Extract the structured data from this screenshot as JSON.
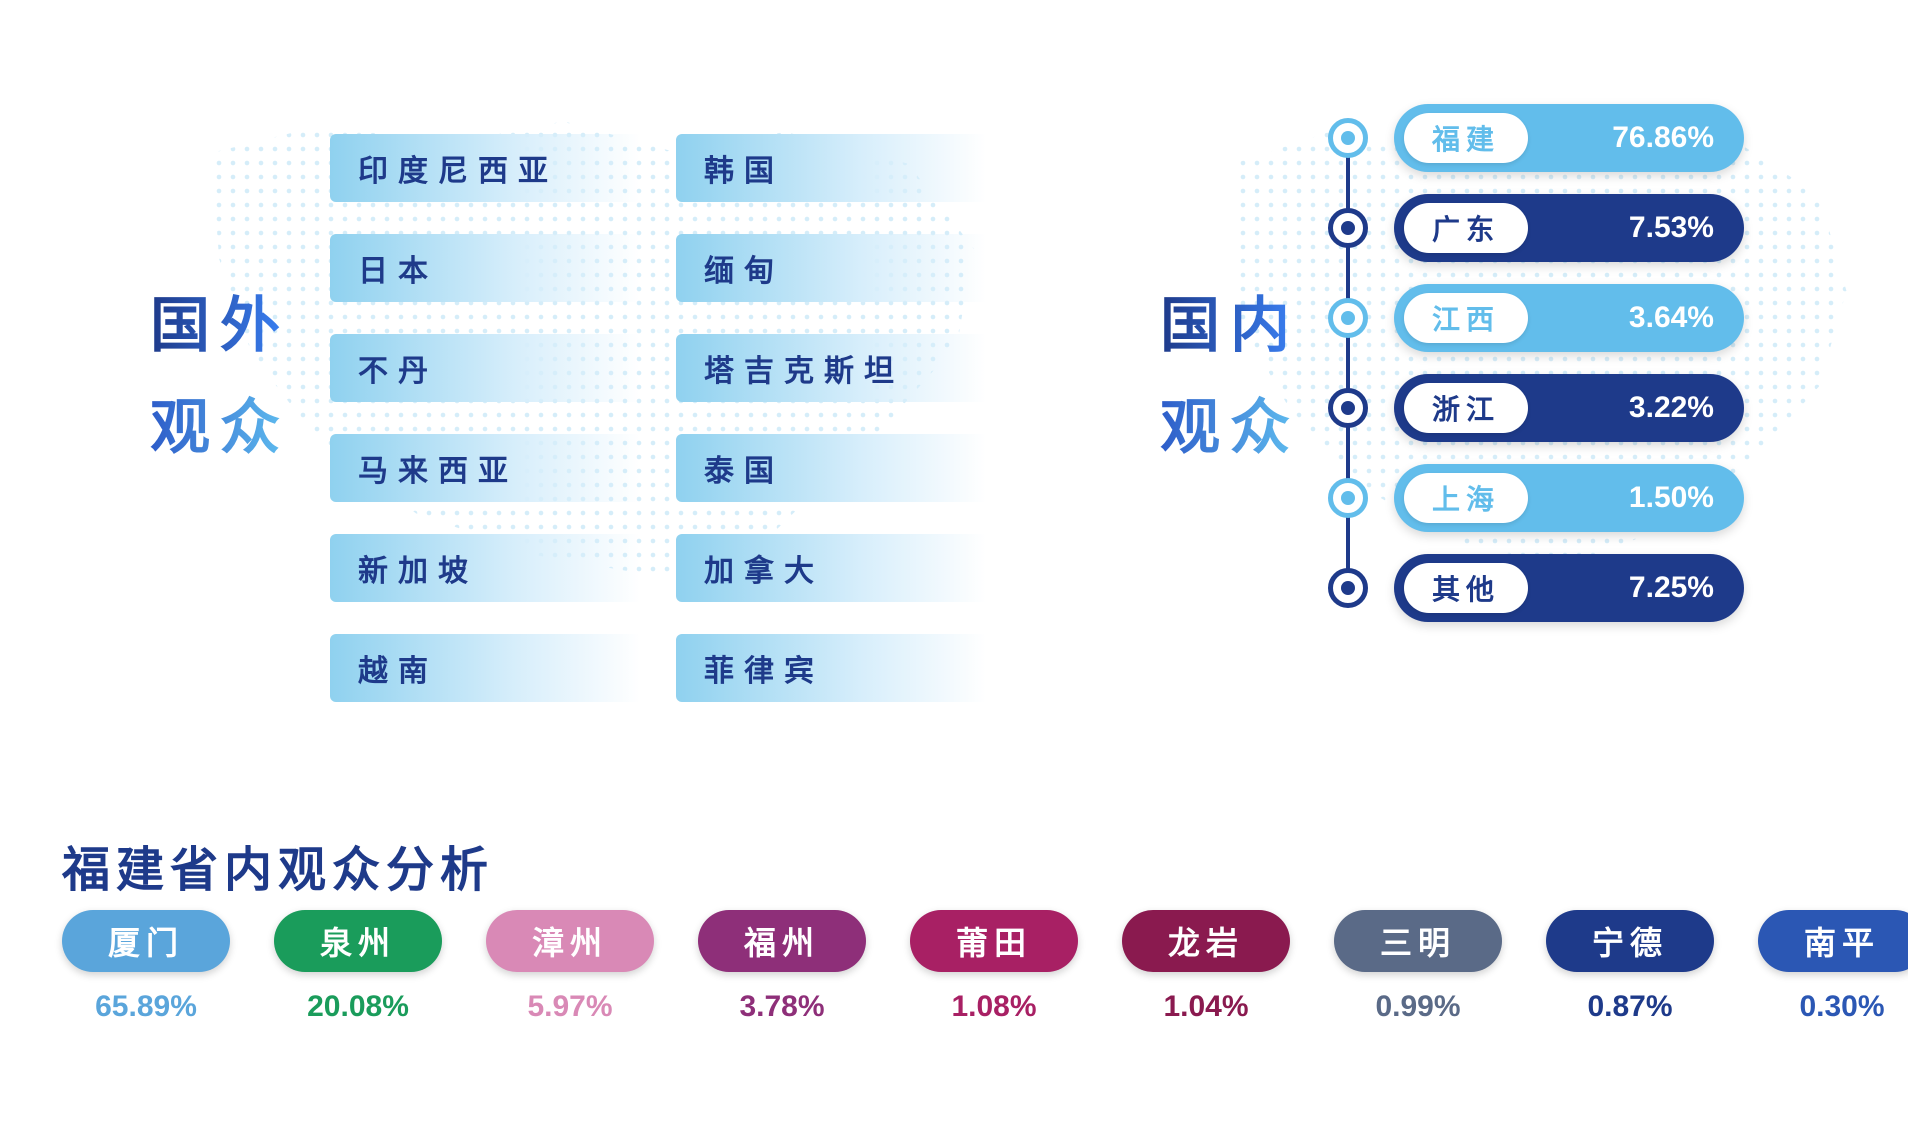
{
  "background_color": "#ffffff",
  "map_dot_color": "#bfe3f5",
  "foreign": {
    "title_line1": "国外",
    "title_line2": "观众",
    "title_gradient_from": "#1e3a8a",
    "title_gradient_to": "#60bff0",
    "bar_font_color": "#1e3a8a",
    "bar_fontsize": 30,
    "col1": [
      {
        "label": "印度尼西亚",
        "c1": "#8fd1ef",
        "c2": "#d7eefb"
      },
      {
        "label": "日本",
        "c1": "#8fd1ef",
        "c2": "#d7eefb"
      },
      {
        "label": "不丹",
        "c1": "#8fd1ef",
        "c2": "#d7eefb"
      },
      {
        "label": "马来西亚",
        "c1": "#8fd1ef",
        "c2": "#d7eefb"
      },
      {
        "label": "新加坡",
        "c1": "#8fd1ef",
        "c2": "#d7eefb"
      },
      {
        "label": "越南",
        "c1": "#8fd1ef",
        "c2": "#d7eefb"
      }
    ],
    "col2": [
      {
        "label": "韩国",
        "c1": "#8fd1ef",
        "c2": "#d7eefb"
      },
      {
        "label": "缅甸",
        "c1": "#8fd1ef",
        "c2": "#d7eefb"
      },
      {
        "label": "塔吉克斯坦",
        "c1": "#8fd1ef",
        "c2": "#d7eefb"
      },
      {
        "label": "泰国",
        "c1": "#8fd1ef",
        "c2": "#d7eefb"
      },
      {
        "label": "加拿大",
        "c1": "#8fd1ef",
        "c2": "#d7eefb"
      },
      {
        "label": "菲律宾",
        "c1": "#8fd1ef",
        "c2": "#d7eefb"
      }
    ]
  },
  "domestic": {
    "title_line1": "国内",
    "title_line2": "观众",
    "timeline_color": "#1e3a8a",
    "items": [
      {
        "label": "福建",
        "value": "76.86%",
        "pill_color": "#62bdeb",
        "node_color": "#62bdeb",
        "label_text_color": "#62bdeb"
      },
      {
        "label": "广东",
        "value": "7.53%",
        "pill_color": "#1e3a8a",
        "node_color": "#1e3a8a",
        "label_text_color": "#1e3a8a"
      },
      {
        "label": "江西",
        "value": "3.64%",
        "pill_color": "#62bdeb",
        "node_color": "#62bdeb",
        "label_text_color": "#62bdeb"
      },
      {
        "label": "浙江",
        "value": "3.22%",
        "pill_color": "#1e3a8a",
        "node_color": "#1e3a8a",
        "label_text_color": "#1e3a8a"
      },
      {
        "label": "上海",
        "value": "1.50%",
        "pill_color": "#62bdeb",
        "node_color": "#62bdeb",
        "label_text_color": "#62bdeb"
      },
      {
        "label": "其他",
        "value": "7.25%",
        "pill_color": "#1e3a8a",
        "node_color": "#1e3a8a",
        "label_text_color": "#1e3a8a"
      }
    ]
  },
  "fujian": {
    "title": "福建省内观众分析",
    "title_color": "#1e3a8a",
    "title_fontsize": 48,
    "items": [
      {
        "label": "厦门",
        "value": "65.89%",
        "color": "#5aa5db"
      },
      {
        "label": "泉州",
        "value": "20.08%",
        "color": "#1a9c5b"
      },
      {
        "label": "漳州",
        "value": "5.97%",
        "color": "#d989b6"
      },
      {
        "label": "福州",
        "value": "3.78%",
        "color": "#8e2f79"
      },
      {
        "label": "莆田",
        "value": "1.08%",
        "color": "#a82064"
      },
      {
        "label": "龙岩",
        "value": "1.04%",
        "color": "#8a1a4f"
      },
      {
        "label": "三明",
        "value": "0.99%",
        "color": "#5a6a87"
      },
      {
        "label": "宁德",
        "value": "0.87%",
        "color": "#1e3a8a"
      },
      {
        "label": "南平",
        "value": "0.30%",
        "color": "#2b57b4"
      }
    ]
  }
}
